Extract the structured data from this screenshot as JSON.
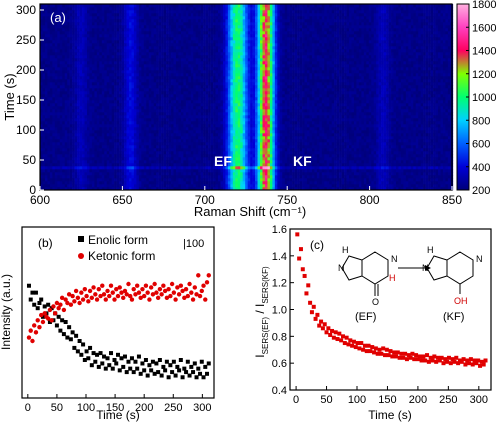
{
  "panels": {
    "a": {
      "label": "(a)",
      "peak_labels": [
        "EF",
        "KF"
      ]
    },
    "b": {
      "label": "(b)",
      "scale_note": "|100"
    },
    "c": {
      "label": "(c)",
      "structures": {
        "left_label": "(EF)",
        "right_label": "(KF)"
      }
    }
  },
  "chart_data": [
    {
      "panel": "a",
      "type": "heatmap",
      "title": "",
      "xlabel": "Raman Shift (cm⁻¹)",
      "ylabel": "Time (s)",
      "xlim": [
        600,
        850
      ],
      "ylim": [
        0,
        310
      ],
      "xticks": [
        600,
        650,
        700,
        750,
        800,
        850
      ],
      "yticks": [
        0,
        50,
        100,
        150,
        200,
        250,
        300
      ],
      "colorbar": {
        "ticks": [
          200,
          400,
          600,
          800,
          1000,
          1200,
          1400,
          1600,
          1800
        ],
        "range": [
          200,
          1800
        ],
        "colors": [
          "#00007a",
          "#0000d8",
          "#0060ff",
          "#00d0ff",
          "#00ff70",
          "#80ff00",
          "#ff0060",
          "#ff40c0",
          "#ffb0e0"
        ]
      },
      "bands": [
        {
          "name": "EF",
          "center": 720,
          "width": 6,
          "intensity": 1000
        },
        {
          "name": "KF",
          "center": 737,
          "width": 5,
          "intensity": 1400
        },
        {
          "name": "",
          "center": 655,
          "width": 4,
          "intensity": 420
        },
        {
          "name": "",
          "center": 625,
          "width": 4,
          "intensity": 330
        },
        {
          "name": "",
          "center": 808,
          "width": 4,
          "intensity": 330
        }
      ],
      "background": 230,
      "bright_line_time": 35,
      "noise_seed": 7
    },
    {
      "panel": "b",
      "type": "scatter",
      "title": "",
      "xlabel": "Time (s)",
      "ylabel": "Intensity (a.u.)",
      "xlim": [
        -10,
        320
      ],
      "xticks": [
        0,
        50,
        100,
        150,
        200,
        250,
        300
      ],
      "legend": "top",
      "series": [
        {
          "name": "Enolic form",
          "color": "#000000",
          "marker": "square",
          "x": [
            2,
            5,
            8,
            11,
            14,
            17,
            20,
            23,
            26,
            29,
            32,
            35,
            38,
            41,
            44,
            47,
            50,
            53,
            56,
            59,
            62,
            65,
            68,
            71,
            74,
            77,
            80,
            83,
            86,
            89,
            92,
            95,
            98,
            101,
            104,
            107,
            110,
            113,
            116,
            119,
            122,
            125,
            128,
            131,
            134,
            137,
            140,
            143,
            146,
            149,
            152,
            155,
            158,
            161,
            164,
            167,
            170,
            173,
            176,
            179,
            182,
            185,
            188,
            191,
            194,
            197,
            200,
            203,
            206,
            209,
            212,
            215,
            218,
            221,
            224,
            227,
            230,
            233,
            236,
            239,
            242,
            245,
            248,
            251,
            254,
            257,
            260,
            263,
            266,
            269,
            272,
            275,
            278,
            281,
            284,
            287,
            290,
            293,
            296,
            299,
            302,
            305,
            308,
            311
          ],
          "y": [
            124,
            116,
            120,
            113,
            120,
            111,
            114,
            116,
            106,
            112,
            108,
            113,
            103,
            111,
            104,
            108,
            101,
            106,
            98,
            104,
            96,
            103,
            94,
            100,
            93,
            97,
            88,
            95,
            86,
            92,
            84,
            90,
            81,
            86,
            82,
            88,
            78,
            85,
            80,
            84,
            77,
            85,
            79,
            83,
            76,
            82,
            78,
            85,
            76,
            81,
            79,
            84,
            75,
            82,
            77,
            83,
            74,
            80,
            76,
            82,
            74,
            80,
            76,
            83,
            73,
            79,
            75,
            81,
            72,
            78,
            75,
            80,
            73,
            79,
            74,
            81,
            72,
            77,
            75,
            80,
            71,
            78,
            74,
            80,
            72,
            77,
            75,
            81,
            71,
            76,
            74,
            80,
            72,
            77,
            74,
            79,
            71,
            76,
            73,
            80,
            71,
            77,
            73,
            79
          ]
        },
        {
          "name": "Ketonic form",
          "color": "#e00000",
          "marker": "circle",
          "x": [
            2,
            5,
            8,
            11,
            14,
            17,
            20,
            23,
            26,
            29,
            32,
            35,
            38,
            41,
            44,
            47,
            50,
            53,
            56,
            59,
            62,
            65,
            68,
            71,
            74,
            77,
            80,
            83,
            86,
            89,
            92,
            95,
            98,
            101,
            104,
            107,
            110,
            113,
            116,
            119,
            122,
            125,
            128,
            131,
            134,
            137,
            140,
            143,
            146,
            149,
            152,
            155,
            158,
            161,
            164,
            167,
            170,
            173,
            176,
            179,
            182,
            185,
            188,
            191,
            194,
            197,
            200,
            203,
            206,
            209,
            212,
            215,
            218,
            221,
            224,
            227,
            230,
            233,
            236,
            239,
            242,
            245,
            248,
            251,
            254,
            257,
            260,
            263,
            266,
            269,
            272,
            275,
            278,
            281,
            284,
            287,
            290,
            293,
            296,
            299,
            302,
            305,
            308,
            311
          ],
          "y": [
            94,
            98,
            92,
            101,
            97,
            104,
            100,
            107,
            103,
            108,
            106,
            105,
            110,
            104,
            112,
            108,
            114,
            111,
            113,
            117,
            110,
            116,
            114,
            119,
            113,
            118,
            115,
            121,
            117,
            114,
            120,
            116,
            122,
            118,
            115,
            121,
            117,
            123,
            119,
            116,
            122,
            118,
            124,
            119,
            116,
            121,
            118,
            124,
            120,
            116,
            122,
            118,
            123,
            120,
            117,
            121,
            119,
            125,
            118,
            116,
            122,
            119,
            124,
            120,
            117,
            122,
            118,
            124,
            120,
            116,
            123,
            119,
            125,
            120,
            117,
            122,
            119,
            124,
            121,
            117,
            122,
            118,
            125,
            120,
            116,
            123,
            119,
            124,
            121,
            117,
            122,
            118,
            125,
            120,
            116,
            123,
            119,
            130,
            118,
            121,
            124,
            116,
            126,
            130
          ]
        }
      ]
    },
    {
      "panel": "c",
      "type": "scatter",
      "title": "",
      "xlabel": "Time (s)",
      "ylabel": "I SERS(EF) / I SERS(KF)",
      "xlim": [
        -10,
        320
      ],
      "ylim": [
        0.4,
        1.6
      ],
      "xticks": [
        0,
        50,
        100,
        150,
        200,
        250,
        300
      ],
      "yticks": [
        0.4,
        0.6,
        0.8,
        1.0,
        1.2,
        1.4,
        1.6
      ],
      "series": [
        {
          "name": "",
          "color": "#e00000",
          "marker": "square",
          "x": [
            2,
            5,
            8,
            11,
            14,
            17,
            20,
            23,
            26,
            29,
            32,
            35,
            38,
            41,
            44,
            47,
            50,
            53,
            56,
            59,
            62,
            65,
            68,
            71,
            74,
            77,
            80,
            83,
            86,
            89,
            92,
            95,
            98,
            101,
            104,
            107,
            110,
            113,
            116,
            119,
            122,
            125,
            128,
            131,
            134,
            137,
            140,
            143,
            146,
            149,
            152,
            155,
            158,
            161,
            164,
            167,
            170,
            173,
            176,
            179,
            182,
            185,
            188,
            191,
            194,
            197,
            200,
            203,
            206,
            209,
            212,
            215,
            218,
            221,
            224,
            227,
            230,
            233,
            236,
            239,
            242,
            245,
            248,
            251,
            254,
            257,
            260,
            263,
            266,
            269,
            272,
            275,
            278,
            281,
            284,
            287,
            290,
            293,
            296,
            299,
            302,
            305,
            308,
            311
          ],
          "y": [
            1.56,
            1.38,
            1.45,
            1.3,
            1.25,
            1.12,
            1.18,
            1.05,
            0.98,
            1.02,
            0.93,
            0.96,
            0.88,
            0.91,
            0.86,
            0.89,
            0.83,
            0.86,
            0.81,
            0.84,
            0.79,
            0.83,
            0.78,
            0.82,
            0.77,
            0.8,
            0.75,
            0.79,
            0.74,
            0.77,
            0.73,
            0.76,
            0.72,
            0.75,
            0.71,
            0.75,
            0.7,
            0.73,
            0.69,
            0.73,
            0.69,
            0.72,
            0.68,
            0.71,
            0.67,
            0.7,
            0.67,
            0.71,
            0.66,
            0.7,
            0.66,
            0.69,
            0.65,
            0.68,
            0.65,
            0.68,
            0.64,
            0.67,
            0.64,
            0.67,
            0.63,
            0.66,
            0.64,
            0.67,
            0.63,
            0.66,
            0.63,
            0.65,
            0.62,
            0.65,
            0.62,
            0.66,
            0.61,
            0.64,
            0.62,
            0.65,
            0.61,
            0.64,
            0.62,
            0.64,
            0.6,
            0.63,
            0.61,
            0.64,
            0.6,
            0.63,
            0.61,
            0.64,
            0.6,
            0.62,
            0.61,
            0.63,
            0.59,
            0.62,
            0.6,
            0.63,
            0.59,
            0.62,
            0.6,
            0.62,
            0.58,
            0.61,
            0.59,
            0.62
          ]
        }
      ]
    }
  ]
}
